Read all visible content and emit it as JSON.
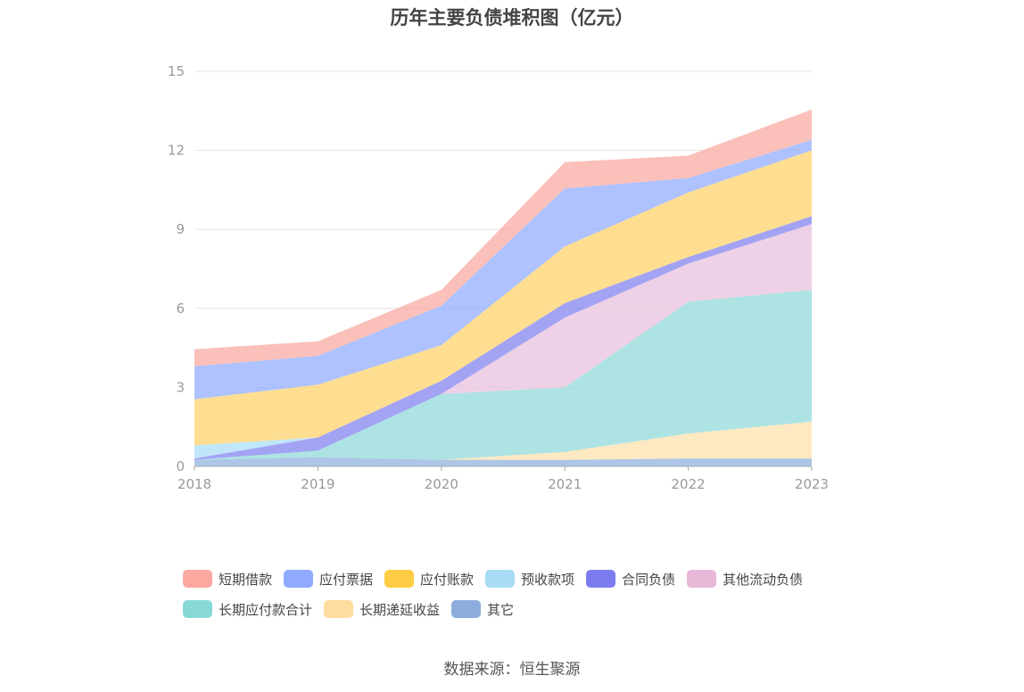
{
  "title": "历年主要负债堆积图（亿元）",
  "source": "数据来源：恒生聚源",
  "colors": {
    "grid": "#e6e6e6",
    "axis": "#aaaaaa"
  },
  "chart_data": {
    "type": "area",
    "stacked": true,
    "title": "历年主要负债堆积图（亿元）",
    "x": [
      "2018",
      "2019",
      "2020",
      "2021",
      "2022",
      "2023"
    ],
    "ylim": [
      0,
      15
    ],
    "yticks": [
      0,
      3,
      6,
      9,
      12,
      15
    ],
    "grid": true,
    "legend_position": "bottom",
    "series": [
      {
        "name": "其它",
        "color": "#8daedc",
        "values": [
          0.25,
          0.35,
          0.25,
          0.25,
          0.3,
          0.3
        ]
      },
      {
        "name": "长期递延收益",
        "color": "#ffe0aa",
        "values": [
          0,
          0,
          0,
          0.3,
          0.95,
          1.4
        ]
      },
      {
        "name": "长期应付款合计",
        "color": "#8ed8d8",
        "values": [
          0,
          0.25,
          2.5,
          2.45,
          5.0,
          5.0
        ]
      },
      {
        "name": "其他流动负债",
        "color": "#e8bfdc",
        "values": [
          0,
          0,
          0,
          2.65,
          1.45,
          2.5
        ]
      },
      {
        "name": "合同负债",
        "color": "#8080f0",
        "values": [
          0.05,
          0.5,
          0.5,
          0.55,
          0.25,
          0.3
        ]
      },
      {
        "name": "预收款项",
        "color": "#a8dcf6",
        "values": [
          0.5,
          0,
          0,
          0,
          0,
          0
        ]
      },
      {
        "name": "应付账款",
        "color": "#ffd166",
        "values": [
          1.75,
          2.0,
          1.35,
          2.15,
          2.45,
          2.5
        ]
      },
      {
        "name": "应付票据",
        "color": "#8faaff",
        "values": [
          1.25,
          1.1,
          1.5,
          2.2,
          0.55,
          0.4
        ]
      },
      {
        "name": "短期借款",
        "color": "#faa8a0",
        "values": [
          0.65,
          0.55,
          0.6,
          1.0,
          0.85,
          1.15
        ]
      }
    ]
  },
  "legend": [
    {
      "label": "短期借款",
      "color": "#faa8a0"
    },
    {
      "label": "应付票据",
      "color": "#8faaff"
    },
    {
      "label": "应付账款",
      "color": "#ffcc44"
    },
    {
      "label": "预收款项",
      "color": "#a8dcf6"
    },
    {
      "label": "合同负债",
      "color": "#7c7cf0"
    },
    {
      "label": "其他流动负债",
      "color": "#e8b8d8"
    },
    {
      "label": "长期应付款合计",
      "color": "#88d8d8"
    },
    {
      "label": "长期递延收益",
      "color": "#ffdca0"
    },
    {
      "label": "其它",
      "color": "#8daedc"
    }
  ]
}
